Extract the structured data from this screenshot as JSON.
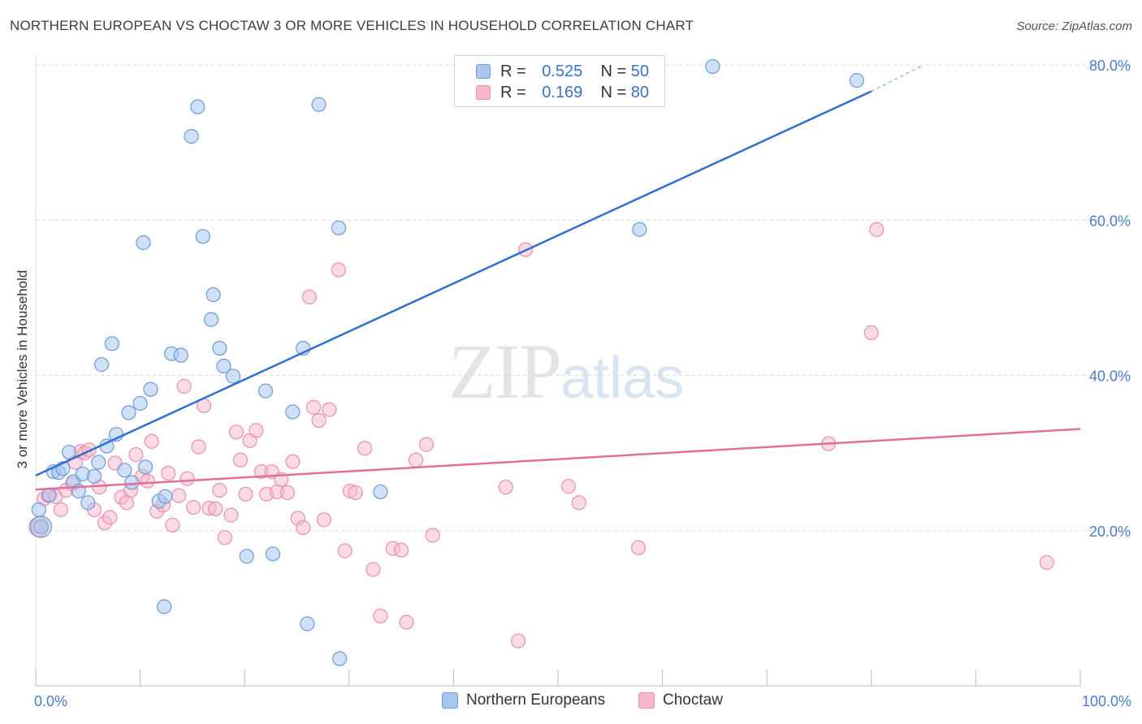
{
  "header": {
    "title": "NORTHERN EUROPEAN VS CHOCTAW 3 OR MORE VEHICLES IN HOUSEHOLD CORRELATION CHART",
    "source": "Source: ZipAtlas.com"
  },
  "watermark": {
    "zip": "ZIP",
    "atlas": "atlas"
  },
  "legend": {
    "rows": [
      {
        "r_label": "R =",
        "r_value": "0.525",
        "n_label": "N =",
        "n_value": "50",
        "color": "#a9c7ee"
      },
      {
        "r_label": "R =",
        "r_value": "0.169",
        "n_label": "N =",
        "n_value": "80",
        "color": "#f5b8cb"
      }
    ]
  },
  "bottom_legend": {
    "series_a": "Northern Europeans",
    "series_b": "Choctaw"
  },
  "colors": {
    "blue_fill": "#a9c7ee",
    "blue_stroke": "#6c9bd8",
    "blue_line": "#2f6fce",
    "pink_fill": "#f5b8cb",
    "pink_stroke": "#ea8fae",
    "pink_line": "#e0709a",
    "tick_text": "#4a7ec9",
    "grid": "#d9d9d9"
  },
  "chart_data": {
    "type": "scatter",
    "title": "NORTHERN EUROPEAN VS CHOCTAW 3 OR MORE VEHICLES IN HOUSEHOLD CORRELATION CHART",
    "xlabel": "",
    "ylabel": "3 or more Vehicles in Household",
    "xlim": [
      0,
      100
    ],
    "ylim": [
      0,
      80
    ],
    "x_tick_labels": [
      "0.0%",
      "100.0%"
    ],
    "y_ticks": [
      20,
      40,
      60,
      80
    ],
    "y_tick_labels": [
      "20.0%",
      "40.0%",
      "60.0%",
      "80.0%"
    ],
    "grid": true,
    "legend_position": "top-center",
    "series": [
      {
        "name": "Northern Europeans",
        "R": 0.525,
        "N": 50,
        "trend": {
          "x": [
            0,
            80
          ],
          "y": [
            27.1,
            76.6
          ],
          "dashed_extension": {
            "x": [
              80,
              85
            ],
            "y": [
              76.6,
              80.0
            ]
          }
        },
        "points": [
          [
            0.3,
            22.7
          ],
          [
            0.5,
            20.5
          ],
          [
            1.3,
            24.6
          ],
          [
            1.7,
            27.6
          ],
          [
            2.2,
            27.5
          ],
          [
            2.6,
            28.0
          ],
          [
            3.2,
            30.1
          ],
          [
            3.6,
            26.3
          ],
          [
            4.1,
            25.1
          ],
          [
            4.5,
            27.3
          ],
          [
            5.0,
            23.6
          ],
          [
            5.6,
            27.0
          ],
          [
            6.0,
            28.8
          ],
          [
            6.8,
            30.9
          ],
          [
            7.7,
            32.4
          ],
          [
            8.5,
            27.8
          ],
          [
            8.9,
            35.2
          ],
          [
            9.2,
            26.2
          ],
          [
            10.0,
            36.4
          ],
          [
            10.5,
            28.2
          ],
          [
            11.0,
            38.2
          ],
          [
            11.8,
            23.8
          ],
          [
            12.4,
            24.4
          ],
          [
            13.0,
            42.8
          ],
          [
            13.9,
            42.6
          ],
          [
            14.9,
            70.8
          ],
          [
            15.5,
            74.6
          ],
          [
            16.0,
            57.9
          ],
          [
            16.8,
            47.2
          ],
          [
            17.0,
            50.4
          ],
          [
            17.6,
            43.5
          ],
          [
            18.0,
            41.2
          ],
          [
            18.9,
            39.9
          ],
          [
            20.2,
            16.7
          ],
          [
            22.0,
            38.0
          ],
          [
            22.7,
            17.0
          ],
          [
            24.6,
            35.3
          ],
          [
            25.6,
            43.5
          ],
          [
            26.0,
            8.0
          ],
          [
            27.1,
            74.9
          ],
          [
            29.0,
            59.0
          ],
          [
            29.1,
            3.5
          ],
          [
            33.0,
            25.0
          ],
          [
            57.8,
            58.8
          ],
          [
            64.8,
            79.8
          ],
          [
            78.6,
            78.0
          ],
          [
            6.3,
            41.4
          ],
          [
            7.3,
            44.1
          ],
          [
            10.3,
            57.1
          ],
          [
            12.3,
            10.2
          ]
        ]
      },
      {
        "name": "Choctaw",
        "R": 0.169,
        "N": 80,
        "trend": {
          "x": [
            0,
            100
          ],
          "y": [
            25.3,
            33.1
          ]
        },
        "points": [
          [
            0.3,
            20.5
          ],
          [
            0.8,
            24.1
          ],
          [
            1.2,
            24.5
          ],
          [
            1.9,
            24.4
          ],
          [
            2.4,
            22.7
          ],
          [
            2.9,
            25.2
          ],
          [
            3.5,
            26.0
          ],
          [
            3.8,
            28.8
          ],
          [
            4.3,
            30.2
          ],
          [
            4.7,
            30.0
          ],
          [
            5.1,
            30.4
          ],
          [
            5.6,
            22.7
          ],
          [
            6.1,
            25.6
          ],
          [
            6.6,
            21.0
          ],
          [
            7.1,
            21.7
          ],
          [
            7.6,
            28.7
          ],
          [
            8.2,
            24.3
          ],
          [
            8.7,
            23.6
          ],
          [
            9.1,
            25.2
          ],
          [
            9.6,
            29.8
          ],
          [
            10.2,
            27.0
          ],
          [
            10.7,
            26.4
          ],
          [
            11.1,
            31.5
          ],
          [
            11.6,
            22.5
          ],
          [
            12.2,
            23.3
          ],
          [
            12.7,
            27.4
          ],
          [
            13.1,
            20.7
          ],
          [
            13.7,
            24.5
          ],
          [
            14.2,
            38.6
          ],
          [
            14.5,
            26.7
          ],
          [
            15.1,
            23.0
          ],
          [
            15.6,
            30.8
          ],
          [
            16.1,
            36.1
          ],
          [
            16.6,
            22.9
          ],
          [
            17.2,
            22.8
          ],
          [
            17.6,
            25.2
          ],
          [
            18.1,
            19.1
          ],
          [
            18.7,
            22.0
          ],
          [
            19.2,
            32.7
          ],
          [
            19.6,
            29.1
          ],
          [
            20.1,
            24.7
          ],
          [
            20.5,
            31.6
          ],
          [
            21.1,
            32.9
          ],
          [
            21.6,
            27.6
          ],
          [
            22.1,
            24.7
          ],
          [
            22.6,
            27.6
          ],
          [
            23.1,
            25.0
          ],
          [
            23.5,
            26.6
          ],
          [
            24.1,
            24.9
          ],
          [
            24.6,
            28.9
          ],
          [
            25.1,
            21.6
          ],
          [
            25.6,
            20.4
          ],
          [
            26.2,
            50.1
          ],
          [
            26.6,
            35.9
          ],
          [
            27.1,
            34.2
          ],
          [
            27.6,
            21.4
          ],
          [
            28.1,
            35.6
          ],
          [
            29.0,
            53.6
          ],
          [
            29.6,
            17.4
          ],
          [
            30.1,
            25.1
          ],
          [
            30.6,
            24.9
          ],
          [
            31.5,
            30.6
          ],
          [
            32.3,
            15.0
          ],
          [
            33.0,
            9.0
          ],
          [
            34.2,
            17.7
          ],
          [
            35.0,
            17.5
          ],
          [
            35.5,
            8.2
          ],
          [
            36.4,
            29.1
          ],
          [
            37.4,
            31.1
          ],
          [
            38.0,
            19.4
          ],
          [
            45.0,
            25.6
          ],
          [
            46.2,
            5.8
          ],
          [
            46.9,
            56.2
          ],
          [
            51.0,
            25.7
          ],
          [
            52.0,
            23.6
          ],
          [
            57.7,
            17.8
          ],
          [
            75.9,
            31.2
          ],
          [
            80.0,
            45.5
          ],
          [
            80.5,
            58.8
          ],
          [
            96.8,
            15.9
          ]
        ]
      }
    ]
  }
}
